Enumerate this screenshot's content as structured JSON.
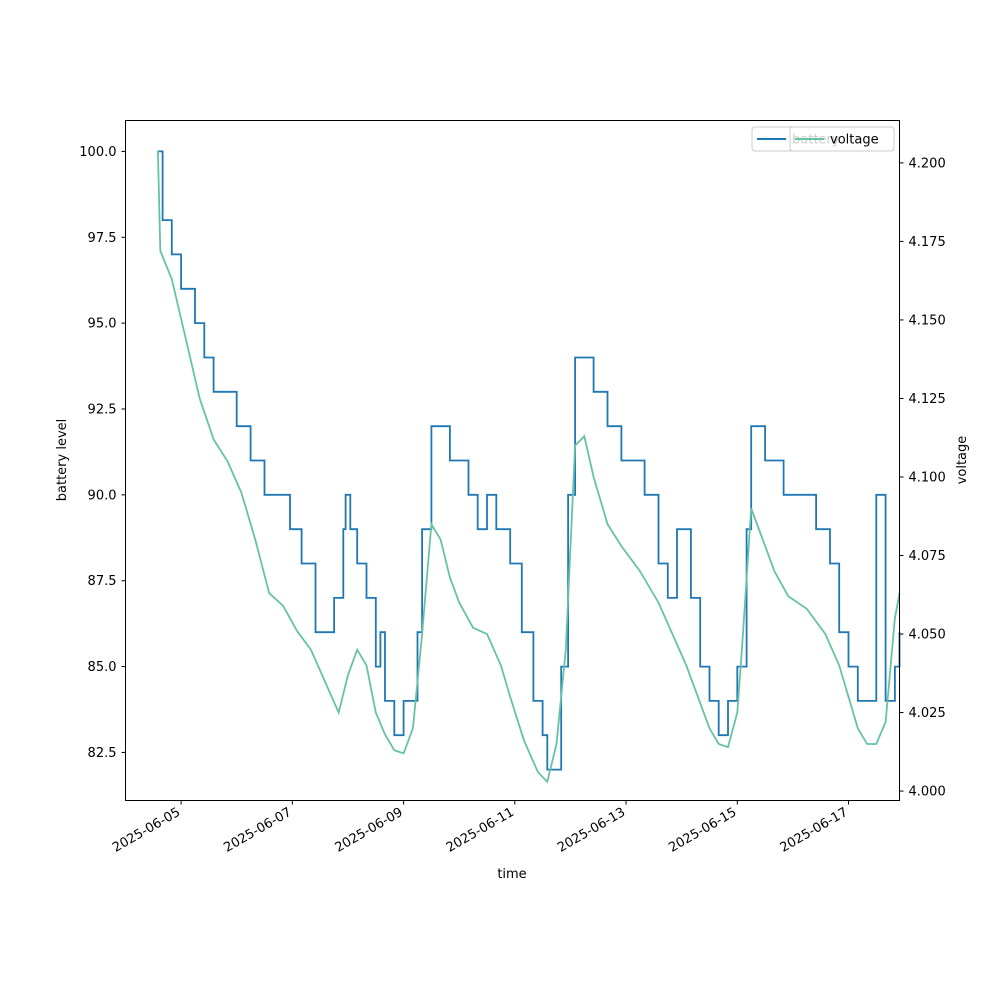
{
  "chart_data": {
    "type": "line",
    "xlabel": "time",
    "ylabel_left": "battery level",
    "ylabel_right": "voltage",
    "x_ticks": [
      "2025-06-05",
      "2025-06-07",
      "2025-06-09",
      "2025-06-11",
      "2025-06-13",
      "2025-06-15",
      "2025-06-17"
    ],
    "x_range": [
      "2025-06-04T00:00",
      "2025-06-17T22:00"
    ],
    "y_left_ticks": [
      "82.5",
      "85.0",
      "87.5",
      "90.0",
      "92.5",
      "95.0",
      "97.5",
      "100.0"
    ],
    "y_left_lim": [
      81.1,
      100.9
    ],
    "y_right_ticks": [
      "4.000",
      "4.025",
      "4.050",
      "4.075",
      "4.100",
      "4.125",
      "4.150",
      "4.175",
      "4.200"
    ],
    "y_right_lim": [
      3.997,
      4.2135
    ],
    "series": [
      {
        "name": "battery",
        "axis": "left",
        "color": "#1f77b4",
        "step": true,
        "points": [
          [
            "2025-06-04T14:00",
            100
          ],
          [
            "2025-06-04T16:00",
            98
          ],
          [
            "2025-06-04T20:00",
            97
          ],
          [
            "2025-06-05T00:00",
            96
          ],
          [
            "2025-06-05T06:00",
            95
          ],
          [
            "2025-06-05T10:00",
            94
          ],
          [
            "2025-06-05T14:00",
            93
          ],
          [
            "2025-06-06T00:00",
            92
          ],
          [
            "2025-06-06T06:00",
            91
          ],
          [
            "2025-06-06T12:00",
            90
          ],
          [
            "2025-06-06T23:00",
            89
          ],
          [
            "2025-06-07T04:00",
            88
          ],
          [
            "2025-06-07T10:00",
            86
          ],
          [
            "2025-06-07T18:00",
            87
          ],
          [
            "2025-06-07T22:00",
            89
          ],
          [
            "2025-06-07T23:00",
            90
          ],
          [
            "2025-06-08T01:00",
            89
          ],
          [
            "2025-06-08T04:00",
            88
          ],
          [
            "2025-06-08T08:00",
            87
          ],
          [
            "2025-06-08T12:00",
            85
          ],
          [
            "2025-06-08T14:00",
            86
          ],
          [
            "2025-06-08T16:00",
            84
          ],
          [
            "2025-06-08T20:00",
            83
          ],
          [
            "2025-06-09T00:00",
            84
          ],
          [
            "2025-06-09T06:00",
            86
          ],
          [
            "2025-06-09T08:00",
            89
          ],
          [
            "2025-06-09T12:00",
            92
          ],
          [
            "2025-06-09T20:00",
            91
          ],
          [
            "2025-06-10T04:00",
            90
          ],
          [
            "2025-06-10T08:00",
            89
          ],
          [
            "2025-06-10T12:00",
            90
          ],
          [
            "2025-06-10T16:00",
            89
          ],
          [
            "2025-06-10T22:00",
            88
          ],
          [
            "2025-06-11T03:00",
            86
          ],
          [
            "2025-06-11T08:00",
            84
          ],
          [
            "2025-06-11T12:00",
            83
          ],
          [
            "2025-06-11T14:00",
            82
          ],
          [
            "2025-06-11T20:00",
            85
          ],
          [
            "2025-06-11T23:00",
            90
          ],
          [
            "2025-06-12T02:00",
            94
          ],
          [
            "2025-06-12T10:00",
            93
          ],
          [
            "2025-06-12T16:00",
            92
          ],
          [
            "2025-06-12T22:00",
            91
          ],
          [
            "2025-06-13T08:00",
            90
          ],
          [
            "2025-06-13T14:00",
            88
          ],
          [
            "2025-06-13T18:00",
            87
          ],
          [
            "2025-06-13T22:00",
            89
          ],
          [
            "2025-06-14T04:00",
            87
          ],
          [
            "2025-06-14T08:00",
            85
          ],
          [
            "2025-06-14T12:00",
            84
          ],
          [
            "2025-06-14T16:00",
            83
          ],
          [
            "2025-06-14T20:00",
            84
          ],
          [
            "2025-06-15T00:00",
            85
          ],
          [
            "2025-06-15T04:00",
            89
          ],
          [
            "2025-06-15T06:00",
            92
          ],
          [
            "2025-06-15T12:00",
            91
          ],
          [
            "2025-06-15T20:00",
            90
          ],
          [
            "2025-06-16T10:00",
            89
          ],
          [
            "2025-06-16T16:00",
            88
          ],
          [
            "2025-06-16T20:00",
            86
          ],
          [
            "2025-06-17T00:00",
            85
          ],
          [
            "2025-06-17T04:00",
            84
          ],
          [
            "2025-06-17T08:00",
            84
          ],
          [
            "2025-06-17T12:00",
            90
          ],
          [
            "2025-06-17T16:00",
            84
          ],
          [
            "2025-06-17T20:00",
            85
          ],
          [
            "2025-06-17T22:00",
            86
          ]
        ]
      },
      {
        "name": "voltage",
        "axis": "right",
        "color": "#66c2a5",
        "step": false,
        "points": [
          [
            "2025-06-04T14:00",
            4.204
          ],
          [
            "2025-06-04T15:00",
            4.172
          ],
          [
            "2025-06-04T20:00",
            4.163
          ],
          [
            "2025-06-05T02:00",
            4.144
          ],
          [
            "2025-06-05T08:00",
            4.125
          ],
          [
            "2025-06-05T14:00",
            4.112
          ],
          [
            "2025-06-05T20:00",
            4.105
          ],
          [
            "2025-06-06T02:00",
            4.095
          ],
          [
            "2025-06-06T08:00",
            4.08
          ],
          [
            "2025-06-06T14:00",
            4.063
          ],
          [
            "2025-06-06T20:00",
            4.059
          ],
          [
            "2025-06-07T02:00",
            4.051
          ],
          [
            "2025-06-07T08:00",
            4.045
          ],
          [
            "2025-06-07T14:00",
            4.035
          ],
          [
            "2025-06-07T20:00",
            4.025
          ],
          [
            "2025-06-08T00:00",
            4.037
          ],
          [
            "2025-06-08T04:00",
            4.045
          ],
          [
            "2025-06-08T08:00",
            4.04
          ],
          [
            "2025-06-08T12:00",
            4.025
          ],
          [
            "2025-06-08T16:00",
            4.018
          ],
          [
            "2025-06-08T20:00",
            4.013
          ],
          [
            "2025-06-09T00:00",
            4.012
          ],
          [
            "2025-06-09T04:00",
            4.02
          ],
          [
            "2025-06-09T08:00",
            4.05
          ],
          [
            "2025-06-09T12:00",
            4.085
          ],
          [
            "2025-06-09T16:00",
            4.08
          ],
          [
            "2025-06-09T20:00",
            4.068
          ],
          [
            "2025-06-10T00:00",
            4.06
          ],
          [
            "2025-06-10T06:00",
            4.052
          ],
          [
            "2025-06-10T12:00",
            4.05
          ],
          [
            "2025-06-10T18:00",
            4.04
          ],
          [
            "2025-06-10T22:00",
            4.03
          ],
          [
            "2025-06-11T04:00",
            4.016
          ],
          [
            "2025-06-11T10:00",
            4.006
          ],
          [
            "2025-06-11T14:00",
            4.003
          ],
          [
            "2025-06-11T18:00",
            4.015
          ],
          [
            "2025-06-11T22:00",
            4.045
          ],
          [
            "2025-06-12T02:00",
            4.11
          ],
          [
            "2025-06-12T06:00",
            4.113
          ],
          [
            "2025-06-12T10:00",
            4.1
          ],
          [
            "2025-06-12T16:00",
            4.085
          ],
          [
            "2025-06-12T22:00",
            4.078
          ],
          [
            "2025-06-13T06:00",
            4.07
          ],
          [
            "2025-06-13T14:00",
            4.06
          ],
          [
            "2025-06-13T20:00",
            4.05
          ],
          [
            "2025-06-14T02:00",
            4.04
          ],
          [
            "2025-06-14T08:00",
            4.028
          ],
          [
            "2025-06-14T12:00",
            4.02
          ],
          [
            "2025-06-14T16:00",
            4.015
          ],
          [
            "2025-06-14T20:00",
            4.014
          ],
          [
            "2025-06-15T00:00",
            4.025
          ],
          [
            "2025-06-15T02:00",
            4.045
          ],
          [
            "2025-06-15T06:00",
            4.09
          ],
          [
            "2025-06-15T10:00",
            4.082
          ],
          [
            "2025-06-15T16:00",
            4.07
          ],
          [
            "2025-06-15T22:00",
            4.062
          ],
          [
            "2025-06-16T06:00",
            4.058
          ],
          [
            "2025-06-16T14:00",
            4.05
          ],
          [
            "2025-06-16T20:00",
            4.04
          ],
          [
            "2025-06-17T00:00",
            4.03
          ],
          [
            "2025-06-17T04:00",
            4.02
          ],
          [
            "2025-06-17T08:00",
            4.015
          ],
          [
            "2025-06-17T12:00",
            4.015
          ],
          [
            "2025-06-17T16:00",
            4.022
          ],
          [
            "2025-06-17T20:00",
            4.055
          ],
          [
            "2025-06-17T22:00",
            4.063
          ]
        ]
      }
    ],
    "legends": [
      {
        "position": "top-right",
        "entries": [
          {
            "label": "battery",
            "color": "#1f77b4"
          }
        ]
      },
      {
        "position": "top-right",
        "entries": [
          {
            "label": "voltage",
            "color": "#66c2a5"
          }
        ]
      }
    ],
    "grid": false
  }
}
